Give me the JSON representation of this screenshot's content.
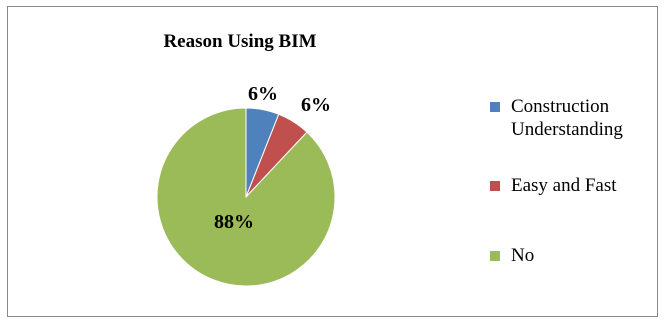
{
  "chart_data": {
    "type": "pie",
    "title": "Reason Using BIM",
    "slices": [
      {
        "label": "Construction Understanding",
        "value": 6,
        "display": "6%",
        "color": "#4f81bd"
      },
      {
        "label": "Easy and Fast",
        "value": 6,
        "display": "6%",
        "color": "#c0504d"
      },
      {
        "label": "No",
        "value": 88,
        "display": "88%",
        "color": "#9bbb59"
      }
    ],
    "start_angle": "12 o'clock",
    "direction": "clockwise",
    "legend_position": "right"
  }
}
